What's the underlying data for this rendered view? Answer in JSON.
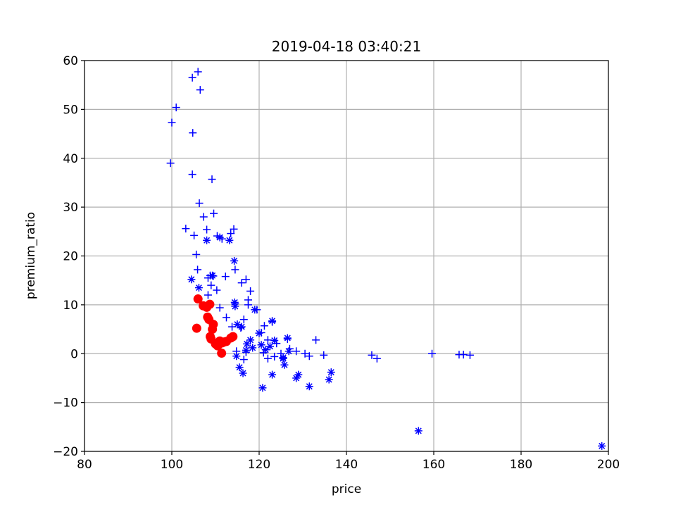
{
  "chart_data": {
    "type": "scatter",
    "title": "2019-04-18 03:40:21",
    "xlabel": "price",
    "ylabel": "premium_ratio",
    "xlim": [
      80,
      200
    ],
    "ylim": [
      -20,
      60
    ],
    "xticks": [
      "80",
      "100",
      "120",
      "140",
      "160",
      "180",
      "200"
    ],
    "yticks": [
      "60",
      "50",
      "40",
      "30",
      "20",
      "10",
      "0",
      "−10",
      "−20"
    ],
    "grid": true,
    "series": [
      {
        "marker": "plus",
        "color": "#0000ff",
        "points": [
          [
            99.7,
            39.0
          ],
          [
            100.0,
            47.3
          ],
          [
            101.0,
            50.4
          ],
          [
            104.7,
            56.5
          ],
          [
            106.0,
            57.7
          ],
          [
            106.5,
            54.0
          ],
          [
            104.8,
            45.2
          ],
          [
            104.7,
            36.7
          ],
          [
            109.2,
            35.7
          ],
          [
            106.3,
            30.8
          ],
          [
            103.2,
            25.6
          ],
          [
            105.1,
            24.2
          ],
          [
            107.3,
            28.0
          ],
          [
            109.6,
            28.7
          ],
          [
            108.0,
            25.4
          ],
          [
            111.5,
            23.5
          ],
          [
            114.2,
            25.5
          ],
          [
            113.5,
            24.6
          ],
          [
            105.6,
            20.3
          ],
          [
            110.4,
            24.1
          ],
          [
            105.9,
            17.2
          ],
          [
            108.3,
            15.5
          ],
          [
            108.8,
            16.0
          ],
          [
            109.5,
            15.9
          ],
          [
            112.3,
            15.8
          ],
          [
            114.5,
            17.2
          ],
          [
            116.0,
            14.5
          ],
          [
            117.0,
            15.2
          ],
          [
            117.5,
            11.0
          ],
          [
            118.0,
            12.8
          ],
          [
            109.0,
            14.0
          ],
          [
            110.3,
            13.0
          ],
          [
            108.3,
            12.0
          ],
          [
            111.0,
            9.4
          ],
          [
            112.5,
            7.4
          ],
          [
            114.5,
            10.2
          ],
          [
            116.5,
            7.0
          ],
          [
            117.5,
            10.0
          ],
          [
            119.5,
            9.0
          ],
          [
            113.8,
            5.5
          ],
          [
            115.8,
            5.3
          ],
          [
            120.5,
            4.3
          ],
          [
            121.2,
            5.7
          ],
          [
            122.0,
            2.8
          ],
          [
            123.0,
            6.5
          ],
          [
            124.0,
            2.1
          ],
          [
            125.0,
            0.0
          ],
          [
            126.5,
            3.0
          ],
          [
            127.0,
            1.0
          ],
          [
            128.5,
            0.5
          ],
          [
            130.5,
            0.0
          ],
          [
            131.5,
            -0.5
          ],
          [
            133.0,
            2.8
          ],
          [
            134.8,
            -0.3
          ],
          [
            121.0,
            0.2
          ],
          [
            122.0,
            -1.0
          ],
          [
            123.5,
            -0.6
          ],
          [
            117.0,
            0.3
          ],
          [
            116.5,
            -1.2
          ],
          [
            114.8,
            0.5
          ],
          [
            145.8,
            -0.3
          ],
          [
            147.0,
            -1.0
          ],
          [
            159.6,
            0.0
          ],
          [
            165.8,
            -0.2
          ],
          [
            166.8,
            -0.2
          ],
          [
            168.3,
            -0.3
          ]
        ]
      },
      {
        "marker": "asterisk",
        "color": "#0000ff",
        "points": [
          [
            104.5,
            15.2
          ],
          [
            106.2,
            13.5
          ],
          [
            108.0,
            23.2
          ],
          [
            109.3,
            16.0
          ],
          [
            111.0,
            23.8
          ],
          [
            113.2,
            23.2
          ],
          [
            114.3,
            19.0
          ],
          [
            114.4,
            10.5
          ],
          [
            114.5,
            9.7
          ],
          [
            115.0,
            6.0
          ],
          [
            116.0,
            5.5
          ],
          [
            117.2,
            2.0
          ],
          [
            118.0,
            2.8
          ],
          [
            118.5,
            1.2
          ],
          [
            119.0,
            9.0
          ],
          [
            120.0,
            4.2
          ],
          [
            120.5,
            1.8
          ],
          [
            122.5,
            1.5
          ],
          [
            123.0,
            6.7
          ],
          [
            123.5,
            2.7
          ],
          [
            125.5,
            -1.0
          ],
          [
            125.8,
            -2.3
          ],
          [
            126.5,
            3.2
          ],
          [
            126.8,
            0.5
          ],
          [
            128.5,
            -5.0
          ],
          [
            129.0,
            -4.3
          ],
          [
            131.5,
            -6.7
          ],
          [
            136.0,
            -5.3
          ],
          [
            136.5,
            -3.8
          ],
          [
            120.8,
            -7.0
          ],
          [
            123.0,
            -4.3
          ],
          [
            114.8,
            -0.5
          ],
          [
            115.5,
            -2.8
          ],
          [
            116.3,
            -4.0
          ],
          [
            117.0,
            0.7
          ],
          [
            156.5,
            -15.8
          ],
          [
            198.5,
            -18.9
          ],
          [
            125.5,
            -0.8
          ],
          [
            121.5,
            0.8
          ]
        ]
      },
      {
        "marker": "circle",
        "color": "#ff0000",
        "points": [
          [
            105.7,
            5.2
          ],
          [
            106.0,
            11.2
          ],
          [
            107.2,
            9.8
          ],
          [
            108.0,
            9.5
          ],
          [
            108.7,
            10.1
          ],
          [
            108.2,
            7.5
          ],
          [
            108.5,
            7.0
          ],
          [
            109.5,
            6.0
          ],
          [
            109.3,
            5.0
          ],
          [
            108.8,
            3.5
          ],
          [
            109.0,
            3.0
          ],
          [
            110.0,
            2.0
          ],
          [
            110.5,
            1.6
          ],
          [
            111.0,
            2.6
          ],
          [
            111.5,
            2.2
          ],
          [
            112.0,
            2.4
          ],
          [
            112.5,
            2.5
          ],
          [
            113.5,
            3.2
          ],
          [
            114.0,
            3.5
          ],
          [
            111.4,
            0.1
          ]
        ]
      }
    ]
  }
}
